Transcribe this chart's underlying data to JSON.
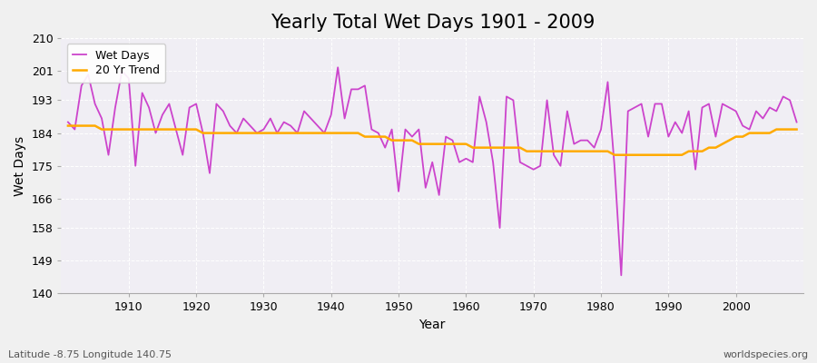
{
  "title": "Yearly Total Wet Days 1901 - 2009",
  "xlabel": "Year",
  "ylabel": "Wet Days",
  "lat_lon_label": "Latitude -8.75 Longitude 140.75",
  "watermark": "worldspecies.org",
  "years": [
    1901,
    1902,
    1903,
    1904,
    1905,
    1906,
    1907,
    1908,
    1909,
    1910,
    1911,
    1912,
    1913,
    1914,
    1915,
    1916,
    1917,
    1918,
    1919,
    1920,
    1921,
    1922,
    1923,
    1924,
    1925,
    1926,
    1927,
    1928,
    1929,
    1930,
    1931,
    1932,
    1933,
    1934,
    1935,
    1936,
    1937,
    1938,
    1939,
    1940,
    1941,
    1942,
    1943,
    1944,
    1945,
    1946,
    1947,
    1948,
    1949,
    1950,
    1951,
    1952,
    1953,
    1954,
    1955,
    1956,
    1957,
    1958,
    1959,
    1960,
    1961,
    1962,
    1963,
    1964,
    1965,
    1966,
    1967,
    1968,
    1969,
    1970,
    1971,
    1972,
    1973,
    1974,
    1975,
    1976,
    1977,
    1978,
    1979,
    1980,
    1981,
    1982,
    1983,
    1984,
    1985,
    1986,
    1987,
    1988,
    1989,
    1990,
    1991,
    1992,
    1993,
    1994,
    1995,
    1996,
    1997,
    1998,
    1999,
    2000,
    2001,
    2002,
    2003,
    2004,
    2005,
    2006,
    2007,
    2008,
    2009
  ],
  "wet_days": [
    187,
    185,
    197,
    200,
    192,
    188,
    178,
    191,
    201,
    199,
    175,
    195,
    191,
    184,
    189,
    192,
    185,
    178,
    191,
    192,
    184,
    173,
    192,
    190,
    186,
    184,
    188,
    186,
    184,
    185,
    188,
    184,
    187,
    186,
    184,
    190,
    188,
    186,
    184,
    189,
    202,
    188,
    196,
    196,
    197,
    185,
    184,
    180,
    185,
    168,
    185,
    183,
    185,
    169,
    176,
    167,
    183,
    182,
    176,
    177,
    176,
    194,
    187,
    176,
    158,
    194,
    193,
    176,
    175,
    174,
    175,
    193,
    178,
    175,
    190,
    181,
    182,
    182,
    180,
    185,
    198,
    175,
    145,
    190,
    191,
    192,
    183,
    192,
    192,
    183,
    187,
    184,
    190,
    174,
    191,
    192,
    183,
    192,
    191,
    190,
    186,
    185,
    190,
    188,
    191,
    190,
    194,
    193,
    187
  ],
  "trend": [
    186,
    186,
    186,
    186,
    186,
    185,
    185,
    185,
    185,
    185,
    185,
    185,
    185,
    185,
    185,
    185,
    185,
    185,
    185,
    185,
    184,
    184,
    184,
    184,
    184,
    184,
    184,
    184,
    184,
    184,
    184,
    184,
    184,
    184,
    184,
    184,
    184,
    184,
    184,
    184,
    184,
    184,
    184,
    184,
    183,
    183,
    183,
    183,
    182,
    182,
    182,
    182,
    181,
    181,
    181,
    181,
    181,
    181,
    181,
    181,
    180,
    180,
    180,
    180,
    180,
    180,
    180,
    180,
    179,
    179,
    179,
    179,
    179,
    179,
    179,
    179,
    179,
    179,
    179,
    179,
    179,
    178,
    178,
    178,
    178,
    178,
    178,
    178,
    178,
    178,
    178,
    178,
    179,
    179,
    179,
    180,
    180,
    181,
    182,
    183,
    183,
    184,
    184,
    184,
    184,
    185,
    185,
    185,
    185
  ],
  "wet_days_color": "#cc44cc",
  "trend_color": "#ffaa00",
  "bg_color": "#f0f0f0",
  "plot_bg_color": "#f0eef4",
  "grid_color": "#ffffff",
  "ylim": [
    140,
    210
  ],
  "yticks": [
    140,
    149,
    158,
    166,
    175,
    184,
    193,
    201,
    210
  ],
  "xticks": [
    1910,
    1920,
    1930,
    1940,
    1950,
    1960,
    1970,
    1980,
    1990,
    2000
  ],
  "title_fontsize": 15,
  "axis_fontsize": 10,
  "tick_fontsize": 9,
  "xlim": [
    1900,
    2010
  ]
}
